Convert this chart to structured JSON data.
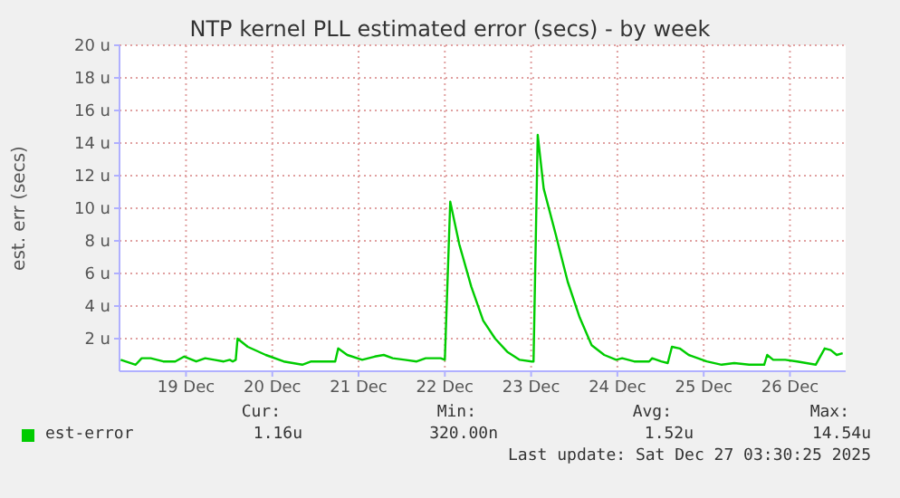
{
  "chart_data": {
    "type": "line",
    "title": "NTP kernel PLL estimated error (secs) - by week",
    "ylabel": "est. err (secs)",
    "x": [
      "2025-12-18T17:50",
      "2025-12-18T22:00",
      "2025-12-18T23:40",
      "2025-12-19T02:10",
      "2025-12-19T05:40",
      "2025-12-19T09:00",
      "2025-12-19T11:30",
      "2025-12-19T14:50",
      "2025-12-19T17:20",
      "2025-12-19T19:50",
      "2025-12-19T22:30",
      "2025-12-20T00:10",
      "2025-12-20T01:00",
      "2025-12-20T01:50",
      "2025-12-20T02:20",
      "2025-12-20T05:10",
      "2025-12-20T10:10",
      "2025-12-20T15:10",
      "2025-12-20T20:20",
      "2025-12-20T22:50",
      "2025-12-21T02:10",
      "2025-12-21T05:30",
      "2025-12-21T06:20",
      "2025-12-21T08:50",
      "2025-12-21T13:00",
      "2025-12-21T16:30",
      "2025-12-21T19:00",
      "2025-12-21T21:30",
      "2025-12-22T00:50",
      "2025-12-22T04:10",
      "2025-12-22T06:40",
      "2025-12-22T10:50",
      "2025-12-22T12:00",
      "2025-12-22T13:30",
      "2025-12-22T16:00",
      "2025-12-22T19:20",
      "2025-12-22T22:40",
      "2025-12-23T02:00",
      "2025-12-23T05:20",
      "2025-12-23T08:50",
      "2025-12-23T12:10",
      "2025-12-23T12:40",
      "2025-12-23T13:50",
      "2025-12-23T15:30",
      "2025-12-23T18:50",
      "2025-12-23T22:10",
      "2025-12-24T01:30",
      "2025-12-24T04:50",
      "2025-12-24T08:20",
      "2025-12-24T11:40",
      "2025-12-24T13:20",
      "2025-12-24T16:40",
      "2025-12-24T20:50",
      "2025-12-24T21:40",
      "2025-12-25T00:10",
      "2025-12-25T02:00",
      "2025-12-25T03:10",
      "2025-12-25T05:20",
      "2025-12-25T07:50",
      "2025-12-25T12:50",
      "2025-12-25T17:00",
      "2025-12-25T20:30",
      "2025-12-26T00:40",
      "2025-12-26T04:50",
      "2025-12-26T05:40",
      "2025-12-26T07:20",
      "2025-12-26T10:40",
      "2025-12-26T14:00",
      "2025-12-26T19:10",
      "2025-12-26T21:40",
      "2025-12-26T23:20",
      "2025-12-27T01:00",
      "2025-12-27T02:40"
    ],
    "series": [
      {
        "name": "est-error",
        "color": "#00cc00",
        "values": [
          0.7,
          0.4,
          0.8,
          0.8,
          0.6,
          0.6,
          0.9,
          0.6,
          0.8,
          0.7,
          0.6,
          0.7,
          0.6,
          0.7,
          2.0,
          1.5,
          1.0,
          0.6,
          0.4,
          0.6,
          0.6,
          0.6,
          1.4,
          1.0,
          0.7,
          0.9,
          1.0,
          0.8,
          0.7,
          0.6,
          0.8,
          0.8,
          0.7,
          10.4,
          7.8,
          5.2,
          3.1,
          2.0,
          1.2,
          0.7,
          0.6,
          0.6,
          14.5,
          11.2,
          8.4,
          5.5,
          3.3,
          1.6,
          1.0,
          0.7,
          0.8,
          0.6,
          0.6,
          0.8,
          0.6,
          0.5,
          1.5,
          1.4,
          1.0,
          0.6,
          0.4,
          0.5,
          0.4,
          0.4,
          1.0,
          0.7,
          0.7,
          0.6,
          0.4,
          1.4,
          1.3,
          1.0,
          1.1
        ]
      }
    ],
    "xlim": [
      "2025-12-18T17:30",
      "2025-12-27T03:30"
    ],
    "xticks": [
      {
        "value": "2025-12-19T12:00",
        "label": "19 Dec"
      },
      {
        "value": "2025-12-20T12:00",
        "label": "20 Dec"
      },
      {
        "value": "2025-12-21T12:00",
        "label": "21 Dec"
      },
      {
        "value": "2025-12-22T12:00",
        "label": "22 Dec"
      },
      {
        "value": "2025-12-23T12:00",
        "label": "23 Dec"
      },
      {
        "value": "2025-12-24T12:00",
        "label": "24 Dec"
      },
      {
        "value": "2025-12-25T12:00",
        "label": "25 Dec"
      },
      {
        "value": "2025-12-26T12:00",
        "label": "26 Dec"
      }
    ],
    "ylim": [
      0,
      20
    ],
    "yticks": [
      {
        "value": 2,
        "label": "2 u"
      },
      {
        "value": 4,
        "label": "4 u"
      },
      {
        "value": 6,
        "label": "6 u"
      },
      {
        "value": 8,
        "label": "8 u"
      },
      {
        "value": 10,
        "label": "10 u"
      },
      {
        "value": 12,
        "label": "12 u"
      },
      {
        "value": 14,
        "label": "14 u"
      },
      {
        "value": 16,
        "label": "16 u"
      },
      {
        "value": 18,
        "label": "18 u"
      },
      {
        "value": 20,
        "label": "20 u"
      }
    ],
    "grid": true,
    "legend": "bottom",
    "marker": "none",
    "line_style": "solid",
    "annotations": [
      "Cur:",
      "Min:",
      "Avg:",
      "Max:",
      "1.16u",
      "320.00n",
      "1.52u",
      "14.54u",
      "Last update: Sat Dec 27 03:30:25 2025"
    ]
  }
}
